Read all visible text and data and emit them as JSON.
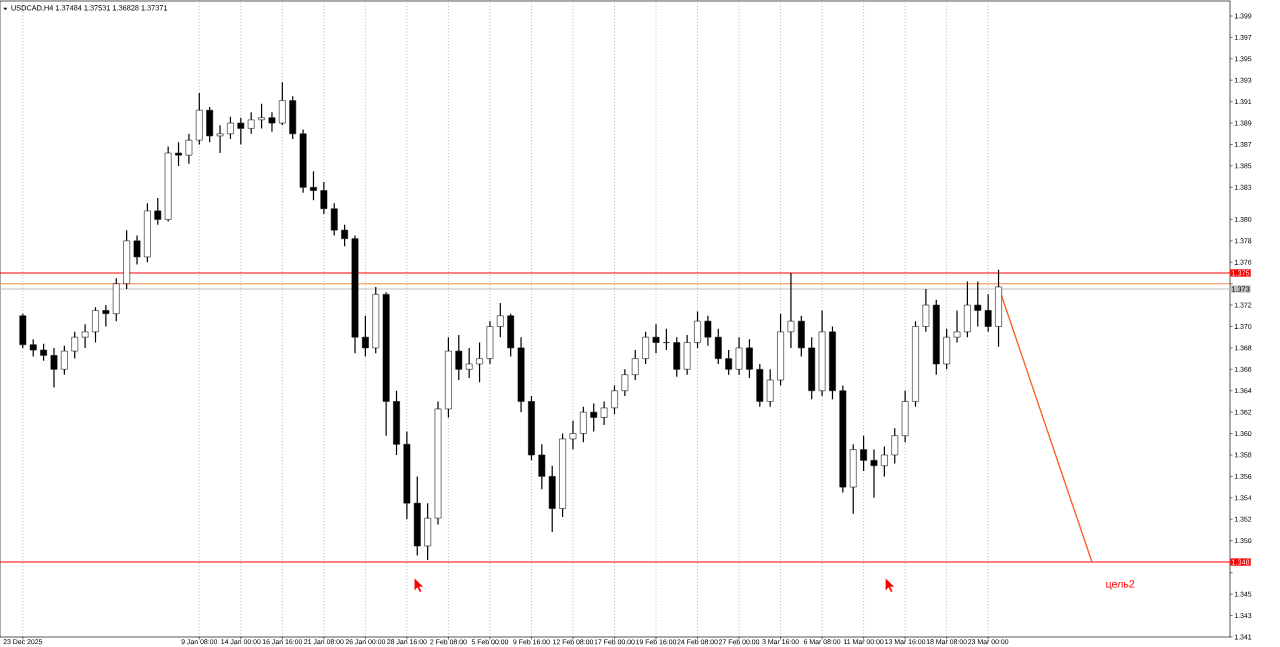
{
  "chart_data": {
    "type": "candlestick",
    "title": "USDCAD,H4  1.37484 1.37531 1.36828 1.37371",
    "color": "#000000",
    "grid": "x",
    "categories": [
      "23 Dec 2025",
      null,
      null,
      null,
      null,
      null,
      null,
      null,
      null,
      null,
      null,
      null,
      null,
      null,
      null,
      null,
      null,
      "9 Jan 08:00",
      null,
      null,
      null,
      "14 Jan 00:00",
      null,
      null,
      null,
      "16 Jan 16:00",
      null,
      null,
      null,
      "21 Jan 08:00",
      null,
      null,
      null,
      "26 Jan 00:00",
      null,
      null,
      null,
      "28 Jan 16:00",
      null,
      null,
      null,
      "2 Feb 08:00",
      null,
      null,
      null,
      "5 Feb 00:00",
      null,
      null,
      null,
      "9 Feb 16:00",
      null,
      null,
      null,
      "12 Feb 08:00",
      null,
      null,
      null,
      "17 Feb 00:00",
      null,
      null,
      null,
      "19 Feb 16:00",
      null,
      null,
      null,
      "24 Feb 08:00",
      null,
      null,
      null,
      "27 Feb 00:00",
      null,
      null,
      null,
      "3 Mar 16:00",
      null,
      null,
      null,
      "6 Mar 08:00",
      null,
      null,
      null,
      "11 Mar 00:00",
      null,
      null,
      null,
      "13 Mar 16:00",
      null,
      null,
      null,
      "18 Mar 08:00",
      null,
      null,
      null,
      "23 Mar 00:00",
      null,
      null,
      null,
      null,
      null,
      null,
      null,
      null,
      null,
      null,
      null,
      null,
      null,
      null,
      null,
      null,
      null,
      null,
      null,
      null,
      null,
      null,
      null
    ],
    "ohlc": [
      [
        1.371,
        1.3712,
        1.368,
        1.3683
      ],
      [
        1.3683,
        1.3688,
        1.3672,
        1.3678
      ],
      [
        1.3678,
        1.3684,
        1.3668,
        1.3673
      ],
      [
        1.3673,
        1.368,
        1.3643,
        1.366
      ],
      [
        1.366,
        1.3682,
        1.3655,
        1.3677
      ],
      [
        1.3677,
        1.3695,
        1.367,
        1.369
      ],
      [
        1.369,
        1.3702,
        1.368,
        1.3695
      ],
      [
        1.3695,
        1.3718,
        1.3685,
        1.3715
      ],
      [
        1.3715,
        1.372,
        1.37,
        1.3712
      ],
      [
        1.3712,
        1.3745,
        1.3705,
        1.374
      ],
      [
        1.374,
        1.379,
        1.3735,
        1.378
      ],
      [
        1.378,
        1.3785,
        1.3758,
        1.3765
      ],
      [
        1.3765,
        1.3815,
        1.376,
        1.3808
      ],
      [
        1.3808,
        1.382,
        1.3795,
        1.38
      ],
      [
        1.38,
        1.3868,
        1.3798,
        1.3862
      ],
      [
        1.3862,
        1.3872,
        1.385,
        1.386
      ],
      [
        1.386,
        1.388,
        1.3852,
        1.3874
      ],
      [
        1.3874,
        1.3918,
        1.387,
        1.3902
      ],
      [
        1.3902,
        1.3905,
        1.3872,
        1.3878
      ],
      [
        1.3878,
        1.3888,
        1.3862,
        1.388
      ],
      [
        1.388,
        1.3896,
        1.3875,
        1.389
      ],
      [
        1.389,
        1.3895,
        1.387,
        1.3885
      ],
      [
        1.3885,
        1.39,
        1.388,
        1.3893
      ],
      [
        1.3893,
        1.3908,
        1.3885,
        1.3895
      ],
      [
        1.3895,
        1.39,
        1.3882,
        1.389
      ],
      [
        1.389,
        1.3928,
        1.3888,
        1.3911
      ],
      [
        1.3911,
        1.3915,
        1.3875,
        1.388
      ],
      [
        1.388,
        1.3884,
        1.3825,
        1.383
      ],
      [
        1.383,
        1.3845,
        1.3818,
        1.3827
      ],
      [
        1.3827,
        1.3835,
        1.3805,
        1.381
      ],
      [
        1.381,
        1.3815,
        1.3785,
        1.379
      ],
      [
        1.379,
        1.3795,
        1.3775,
        1.3782
      ],
      [
        1.3782,
        1.3785,
        1.3675,
        1.369
      ],
      [
        1.369,
        1.371,
        1.3672,
        1.368
      ],
      [
        1.368,
        1.3737,
        1.3675,
        1.373
      ],
      [
        1.373,
        1.3732,
        1.3598,
        1.363
      ],
      [
        1.363,
        1.364,
        1.358,
        1.359
      ],
      [
        1.359,
        1.3602,
        1.352,
        1.3535
      ],
      [
        1.3535,
        1.356,
        1.3486,
        1.3495
      ],
      [
        1.3495,
        1.3535,
        1.3482,
        1.3521
      ],
      [
        1.3521,
        1.363,
        1.3515,
        1.3623
      ],
      [
        1.3623,
        1.369,
        1.3615,
        1.3677
      ],
      [
        1.3677,
        1.3692,
        1.365,
        1.366
      ],
      [
        1.366,
        1.368,
        1.3652,
        1.3665
      ],
      [
        1.3665,
        1.3685,
        1.3648,
        1.367
      ],
      [
        1.367,
        1.3705,
        1.3665,
        1.37
      ],
      [
        1.37,
        1.3722,
        1.369,
        1.371
      ],
      [
        1.371,
        1.3712,
        1.3672,
        1.368
      ],
      [
        1.368,
        1.369,
        1.362,
        1.363
      ],
      [
        1.363,
        1.3635,
        1.3575,
        1.358
      ],
      [
        1.358,
        1.359,
        1.3548,
        1.356
      ],
      [
        1.356,
        1.357,
        1.3508,
        1.353
      ],
      [
        1.353,
        1.36,
        1.3522,
        1.3595
      ],
      [
        1.3595,
        1.3612,
        1.3585,
        1.36
      ],
      [
        1.36,
        1.3625,
        1.3592,
        1.362
      ],
      [
        1.362,
        1.3628,
        1.3602,
        1.3615
      ],
      [
        1.3615,
        1.363,
        1.3608,
        1.3624
      ],
      [
        1.3624,
        1.3645,
        1.3618,
        1.364
      ],
      [
        1.364,
        1.366,
        1.3635,
        1.3655
      ],
      [
        1.3655,
        1.3678,
        1.365,
        1.367
      ],
      [
        1.367,
        1.3695,
        1.3665,
        1.369
      ],
      [
        1.369,
        1.3702,
        1.3675,
        1.3685
      ],
      [
        1.3685,
        1.3698,
        1.3678,
        1.3685
      ],
      [
        1.3685,
        1.369,
        1.3653,
        1.366
      ],
      [
        1.366,
        1.3692,
        1.3655,
        1.3685
      ],
      [
        1.3685,
        1.3714,
        1.368,
        1.3705
      ],
      [
        1.3705,
        1.371,
        1.3682,
        1.369
      ],
      [
        1.369,
        1.3698,
        1.3665,
        1.367
      ],
      [
        1.367,
        1.3678,
        1.3655,
        1.366
      ],
      [
        1.366,
        1.369,
        1.3655,
        1.368
      ],
      [
        1.368,
        1.3688,
        1.3652,
        1.366
      ],
      [
        1.366,
        1.3665,
        1.3625,
        1.363
      ],
      [
        1.363,
        1.366,
        1.3625,
        1.365
      ],
      [
        1.365,
        1.3712,
        1.3645,
        1.3695
      ],
      [
        1.3695,
        1.375,
        1.368,
        1.3705
      ],
      [
        1.3705,
        1.371,
        1.3672,
        1.368
      ],
      [
        1.368,
        1.369,
        1.3632,
        1.364
      ],
      [
        1.364,
        1.3715,
        1.3635,
        1.3695
      ],
      [
        1.3695,
        1.37,
        1.3632,
        1.364
      ],
      [
        1.364,
        1.3645,
        1.3545,
        1.355
      ],
      [
        1.355,
        1.359,
        1.3525,
        1.3585
      ],
      [
        1.3585,
        1.3598,
        1.3565,
        1.3575
      ],
      [
        1.3575,
        1.3585,
        1.354,
        1.357
      ],
      [
        1.357,
        1.3588,
        1.356,
        1.358
      ],
      [
        1.358,
        1.3605,
        1.3572,
        1.3598
      ],
      [
        1.3598,
        1.364,
        1.3592,
        1.363
      ],
      [
        1.363,
        1.3705,
        1.3625,
        1.37
      ],
      [
        1.37,
        1.3735,
        1.3695,
        1.372
      ],
      [
        1.372,
        1.3725,
        1.3655,
        1.3665
      ],
      [
        1.3665,
        1.3698,
        1.366,
        1.369
      ],
      [
        1.369,
        1.3715,
        1.3685,
        1.3695
      ],
      [
        1.3695,
        1.3742,
        1.369,
        1.372
      ],
      [
        1.372,
        1.3742,
        1.37,
        1.3715
      ],
      [
        1.3715,
        1.373,
        1.3695,
        1.37
      ],
      [
        1.37,
        1.3753,
        1.3681,
        1.3737
      ],
      null,
      null,
      null,
      null,
      null,
      null,
      null,
      null,
      null,
      null,
      null,
      null,
      null,
      null,
      null,
      null,
      null,
      null,
      null,
      null,
      null,
      null
    ],
    "series": [
      {
        "type": "line",
        "color": "#ff5a1f",
        "values": [
          null,
          null,
          null,
          null,
          null,
          null,
          null,
          null,
          null,
          null,
          null,
          null,
          null,
          null,
          null,
          null,
          null,
          null,
          null,
          null,
          null,
          null,
          null,
          null,
          null,
          null,
          null,
          null,
          null,
          null,
          null,
          null,
          null,
          null,
          null,
          null,
          null,
          null,
          null,
          null,
          null,
          null,
          null,
          null,
          null,
          null,
          null,
          null,
          null,
          null,
          null,
          null,
          null,
          null,
          null,
          null,
          null,
          null,
          null,
          null,
          null,
          null,
          null,
          null,
          null,
          null,
          null,
          null,
          null,
          null,
          null,
          null,
          null,
          null,
          null,
          null,
          null,
          null,
          null,
          null,
          null,
          null,
          null,
          null,
          null,
          null,
          null,
          null,
          null,
          null,
          null,
          null,
          null,
          null,
          1.3737,
          null,
          null,
          null,
          null,
          null,
          null,
          null,
          null,
          1.348,
          null,
          null,
          null,
          null,
          null,
          null,
          null,
          null,
          null,
          null,
          null,
          null,
          null
        ]
      }
    ],
    "ylim": [
      1.341,
      1.4004
    ],
    "yticks": [
      {
        "value": 1.341,
        "label": "1.341"
      },
      {
        "value": 1.343,
        "label": "1.343"
      },
      {
        "value": 1.345,
        "label": "1.345"
      },
      {
        "value": 1.347,
        "label": null
      },
      {
        "value": 1.35,
        "label": "1.350"
      },
      {
        "value": 1.352,
        "label": "1.352"
      },
      {
        "value": 1.354,
        "label": "1.354"
      },
      {
        "value": 1.356,
        "label": "1.356"
      },
      {
        "value": 1.358,
        "label": "1.358"
      },
      {
        "value": 1.36,
        "label": "1.360"
      },
      {
        "value": 1.362,
        "label": "1.362"
      },
      {
        "value": 1.364,
        "label": "1.364"
      },
      {
        "value": 1.366,
        "label": "1.366"
      },
      {
        "value": 1.368,
        "label": "1.368"
      },
      {
        "value": 1.37,
        "label": "1.370"
      },
      {
        "value": 1.372,
        "label": "1.372"
      },
      {
        "value": 1.374,
        "label": null
      },
      {
        "value": 1.376,
        "label": "1.376"
      },
      {
        "value": 1.378,
        "label": "1.378"
      },
      {
        "value": 1.38,
        "label": "1.380"
      },
      {
        "value": 1.383,
        "label": "1.383"
      },
      {
        "value": 1.385,
        "label": "1.385"
      },
      {
        "value": 1.387,
        "label": "1.387"
      },
      {
        "value": 1.389,
        "label": "1.389"
      },
      {
        "value": 1.391,
        "label": "1.391"
      },
      {
        "value": 1.393,
        "label": "1.393"
      },
      {
        "value": 1.395,
        "label": "1.395"
      },
      {
        "value": 1.397,
        "label": "1.397"
      },
      {
        "value": 1.399,
        "label": "1.399"
      }
    ],
    "ref_lines": [
      {
        "axis": "y",
        "value": 1.375,
        "label": "1.375",
        "color": "#ff0000"
      },
      {
        "axis": "y",
        "value": 1.374,
        "color": "#ff8c40"
      },
      {
        "axis": "y",
        "value": 1.3735,
        "label": "1.373",
        "color": "#c0c0c0"
      },
      {
        "axis": "y",
        "value": 1.348,
        "label": "1.348",
        "color": "#ff0000"
      }
    ],
    "annotations": [
      "цель2"
    ]
  }
}
